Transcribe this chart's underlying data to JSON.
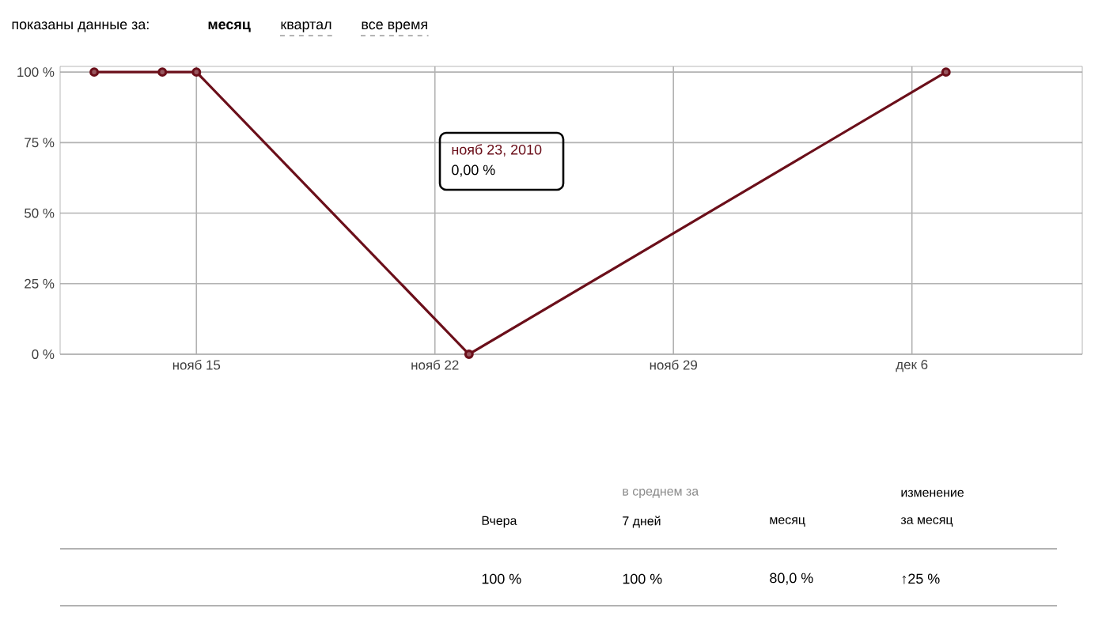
{
  "chart_data": {
    "type": "line",
    "x": [
      "2010-11-12",
      "2010-11-14",
      "2010-11-15",
      "2010-11-23",
      "2010-12-07"
    ],
    "series": [
      {
        "color": "#6b0f1a",
        "values": [
          100,
          100,
          100,
          0,
          100
        ]
      }
    ],
    "xlim": [
      "2010-11-11",
      "2010-12-11"
    ],
    "xticks": [
      {
        "value": "2010-11-15",
        "label": "нояб 15"
      },
      {
        "value": "2010-11-22",
        "label": "нояб 22"
      },
      {
        "value": "2010-11-29",
        "label": "нояб 29"
      },
      {
        "value": "2010-12-06",
        "label": "дек 6"
      }
    ],
    "ylim": [
      0,
      102
    ],
    "yticks": [
      {
        "value": 0,
        "label": "0 %"
      },
      {
        "value": 25,
        "label": "25 %"
      },
      {
        "value": 50,
        "label": "50 %"
      },
      {
        "value": 75,
        "label": "75 %"
      },
      {
        "value": 100,
        "label": "100 %"
      }
    ],
    "grid": true,
    "marker": "circle",
    "line_style": "solid",
    "annotations": [
      "нояб 23, 2010",
      "0,00 %",
      "показаны данные за:",
      "месяц",
      "квартал",
      "все время",
      "Вчера",
      "в среднем за",
      "7 дней",
      "месяц",
      "изменение",
      "за месяц",
      "100 %",
      "100 %",
      "80,0 %",
      "↑25 %"
    ]
  }
}
